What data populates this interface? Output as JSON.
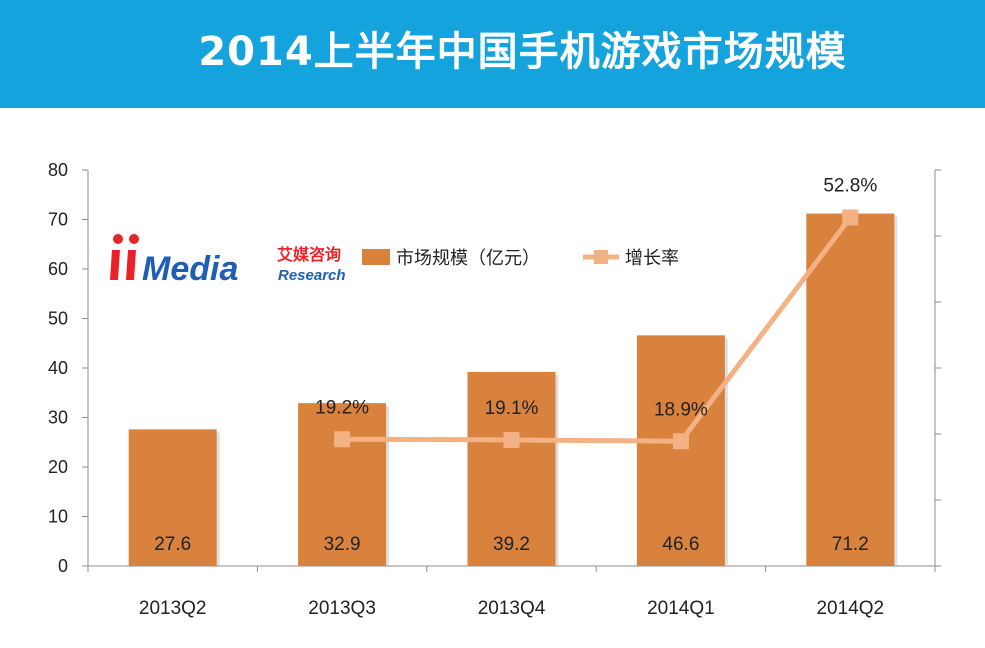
{
  "header": {
    "title": "2014上半年中国手机游戏市场规模"
  },
  "logo": {
    "brand": "iiMedia",
    "cn": "艾媒咨询",
    "en": "Research"
  },
  "chart_data": {
    "type": "bar",
    "categories": [
      "2013Q2",
      "2013Q3",
      "2013Q4",
      "2014Q1",
      "2014Q2"
    ],
    "series": [
      {
        "name": "市场规模（亿元）",
        "type": "bar",
        "values": [
          27.6,
          32.9,
          39.2,
          46.6,
          71.2
        ],
        "color": "#d9823e"
      },
      {
        "name": "增长率",
        "type": "line",
        "values": [
          null,
          19.2,
          19.1,
          18.9,
          52.8
        ],
        "labels": [
          "",
          "19.2%",
          "19.1%",
          "18.9%",
          "52.8%"
        ],
        "color": "#f4b183"
      }
    ],
    "ylim": [
      0,
      80
    ],
    "yticks": [
      "0",
      "10",
      "20",
      "30",
      "40",
      "50",
      "60",
      "70",
      "80"
    ],
    "y2lim": [
      0,
      60
    ],
    "bar_labels": [
      "27.6",
      "32.9",
      "39.2",
      "46.6",
      "71.2"
    ],
    "legend_position": "top-center",
    "grid": false
  }
}
